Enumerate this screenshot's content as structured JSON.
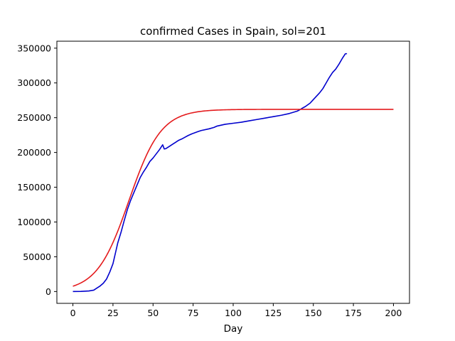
{
  "chart_data": {
    "type": "line",
    "title": "confirmed Cases in Spain, sol=201",
    "xlabel": "Day",
    "ylabel": "",
    "xlim": [
      -10,
      210
    ],
    "ylim": [
      -17000,
      360000
    ],
    "x_ticks": [
      0,
      25,
      50,
      75,
      100,
      125,
      150,
      175,
      200
    ],
    "y_ticks": [
      0,
      50000,
      100000,
      150000,
      200000,
      250000,
      300000,
      350000
    ],
    "grid": false,
    "series": [
      {
        "color": "#0000cd",
        "x": [
          0,
          5,
          10,
          13,
          15,
          17,
          19,
          21,
          23,
          25,
          27,
          28,
          30,
          32,
          34,
          36,
          38,
          40,
          42,
          44,
          46,
          48,
          50,
          52,
          54,
          56,
          57,
          58,
          60,
          62,
          64,
          66,
          68,
          70,
          72,
          74,
          75,
          78,
          80,
          85,
          88,
          90,
          92,
          95,
          100,
          105,
          110,
          115,
          120,
          125,
          130,
          135,
          140,
          142,
          143,
          145,
          148,
          150,
          152,
          154,
          156,
          158,
          160,
          162,
          164,
          166,
          168,
          170,
          171
        ],
        "y": [
          0,
          200,
          800,
          2000,
          5000,
          8000,
          12000,
          18000,
          28000,
          40000,
          60000,
          70000,
          85000,
          102000,
          118000,
          131000,
          142000,
          153000,
          164000,
          172000,
          179000,
          187000,
          192000,
          198000,
          204000,
          211000,
          205000,
          205500,
          208500,
          211500,
          214500,
          217500,
          219500,
          222000,
          224500,
          226500,
          227500,
          230000,
          231500,
          234000,
          236000,
          238000,
          239000,
          240500,
          242000,
          243500,
          245500,
          247500,
          249500,
          251500,
          253500,
          256000,
          259500,
          262000,
          263500,
          266000,
          271000,
          276000,
          281000,
          286000,
          292000,
          300000,
          308000,
          315000,
          320000,
          327000,
          335000,
          342000,
          342000
        ]
      },
      {
        "color": "#e41a1c",
        "model": "logistic",
        "x_range": [
          0,
          200
        ],
        "K": 262000,
        "r": 0.1,
        "t0": 35
      }
    ]
  }
}
